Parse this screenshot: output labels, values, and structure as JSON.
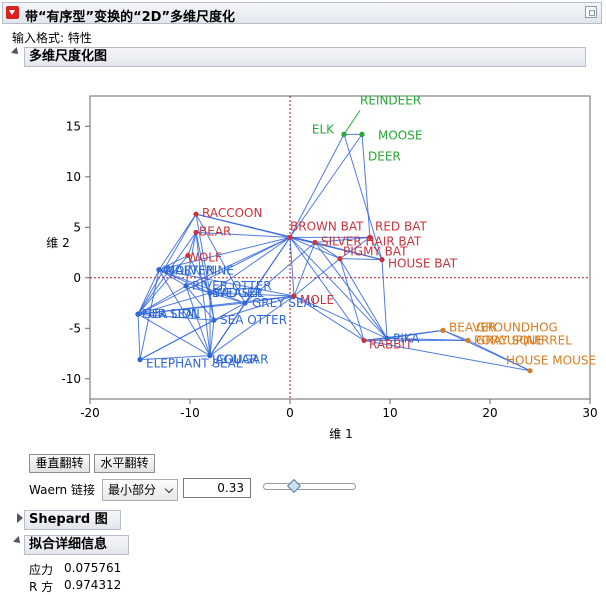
{
  "header": {
    "title": "带“有序型”变换的“2D”多维尺度化"
  },
  "input_format": "输入格式: 特性",
  "plot_section": {
    "title": "多维尺度化图"
  },
  "colors": {
    "red": "#c8343c",
    "blue": "#2f68d8",
    "green": "#27a834",
    "orange": "#d77e22",
    "axis_ref": "#b01616",
    "link": "#2f64dc"
  },
  "controls": {
    "flip_vertical": "垂直翻转",
    "flip_horizontal": "水平翻转",
    "waern_label": "Waern 链接",
    "waern_select": "最小部分",
    "waern_value": "0.33",
    "slider_position": 0.33
  },
  "shepard": {
    "title": "Shepard 图"
  },
  "fit_details": {
    "title": "拟合详细信息",
    "stress_label": "应力",
    "stress_value": "0.075761",
    "rsq_label": "R 方",
    "rsq_value": "0.974312"
  },
  "chart_data": {
    "type": "scatter",
    "xlabel": "维 1",
    "ylabel": "维 2",
    "xlim": [
      -20,
      30
    ],
    "ylim": [
      -12,
      18
    ],
    "xticks": [
      "-20",
      "-10",
      "0",
      "10",
      "20",
      "30"
    ],
    "yticks": [
      "-10",
      "-5",
      "0",
      "5",
      "10",
      "15"
    ],
    "xtick_values": [
      -20,
      -10,
      0,
      10,
      20,
      30
    ],
    "ytick_values": [
      -10,
      -5,
      0,
      5,
      10,
      15
    ],
    "reference_lines": {
      "x": 0,
      "y": 0
    },
    "points": [
      {
        "label": "REINDEER",
        "x": 5.4,
        "y": 14.2,
        "group": "green"
      },
      {
        "label": "ELK",
        "x": 5.4,
        "y": 14.2,
        "group": "green"
      },
      {
        "label": "MOOSE",
        "x": 7.2,
        "y": 14.2,
        "group": "green"
      },
      {
        "label": "DEER",
        "x": 7.2,
        "y": 14.2,
        "group": "green"
      },
      {
        "label": "RACCOON",
        "x": -9.4,
        "y": 6.3,
        "group": "red"
      },
      {
        "label": "BEAR",
        "x": -9.4,
        "y": 4.5,
        "group": "red"
      },
      {
        "label": "WOLF",
        "x": -10.2,
        "y": 2.2,
        "group": "red"
      },
      {
        "label": "BROWN BAT",
        "x": 0.0,
        "y": 4.0,
        "group": "red"
      },
      {
        "label": "RED BAT",
        "x": 8.0,
        "y": 4.0,
        "group": "red"
      },
      {
        "label": "SILVER HAIR BAT",
        "x": 2.5,
        "y": 3.5,
        "group": "red"
      },
      {
        "label": "PIGMY BAT",
        "x": 5.0,
        "y": 1.9,
        "group": "red"
      },
      {
        "label": "HOUSE BAT",
        "x": 9.2,
        "y": 1.8,
        "group": "red"
      },
      {
        "label": "MOLE",
        "x": 0.4,
        "y": -1.8,
        "group": "red"
      },
      {
        "label": "RABBIT",
        "x": 7.4,
        "y": -6.2,
        "group": "red"
      },
      {
        "label": "WOLVERINE",
        "x": -13.1,
        "y": 0.8,
        "group": "blue"
      },
      {
        "label": "MARTEN",
        "x": -13.1,
        "y": 0.8,
        "group": "blue"
      },
      {
        "label": "RIVER OTTER",
        "x": -10.4,
        "y": -0.8,
        "group": "blue"
      },
      {
        "label": "BADGER",
        "x": -8.0,
        "y": -1.5,
        "group": "blue"
      },
      {
        "label": "WEASEL",
        "x": -8.0,
        "y": -1.5,
        "group": "blue"
      },
      {
        "label": "GREY SEAL",
        "x": -4.5,
        "y": -2.5,
        "group": "blue"
      },
      {
        "label": "FUR SEAL",
        "x": -15.2,
        "y": -3.6,
        "group": "blue"
      },
      {
        "label": "SEA LION",
        "x": -15.2,
        "y": -3.6,
        "group": "blue"
      },
      {
        "label": "SEA OTTER",
        "x": -7.6,
        "y": -4.2,
        "group": "blue"
      },
      {
        "label": "JAGUAR",
        "x": -8.0,
        "y": -7.7,
        "group": "blue"
      },
      {
        "label": "COUGAR",
        "x": -8.0,
        "y": -7.7,
        "group": "blue"
      },
      {
        "label": "ELEPHANT SEAL",
        "x": -15.0,
        "y": -8.1,
        "group": "blue"
      },
      {
        "label": "PIKA",
        "x": 9.7,
        "y": -6.0,
        "group": "blue"
      },
      {
        "label": "BEAVER",
        "x": 15.3,
        "y": -5.2,
        "group": "orange"
      },
      {
        "label": "GROUNDHOG",
        "x": 15.3,
        "y": -5.2,
        "group": "orange"
      },
      {
        "label": "PORCUPINE",
        "x": 17.8,
        "y": -6.2,
        "group": "orange"
      },
      {
        "label": "GRAY SQUIRREL",
        "x": 17.8,
        "y": -6.2,
        "group": "orange"
      },
      {
        "label": "HOUSE MOUSE",
        "x": 24.0,
        "y": -9.2,
        "group": "orange"
      }
    ]
  }
}
